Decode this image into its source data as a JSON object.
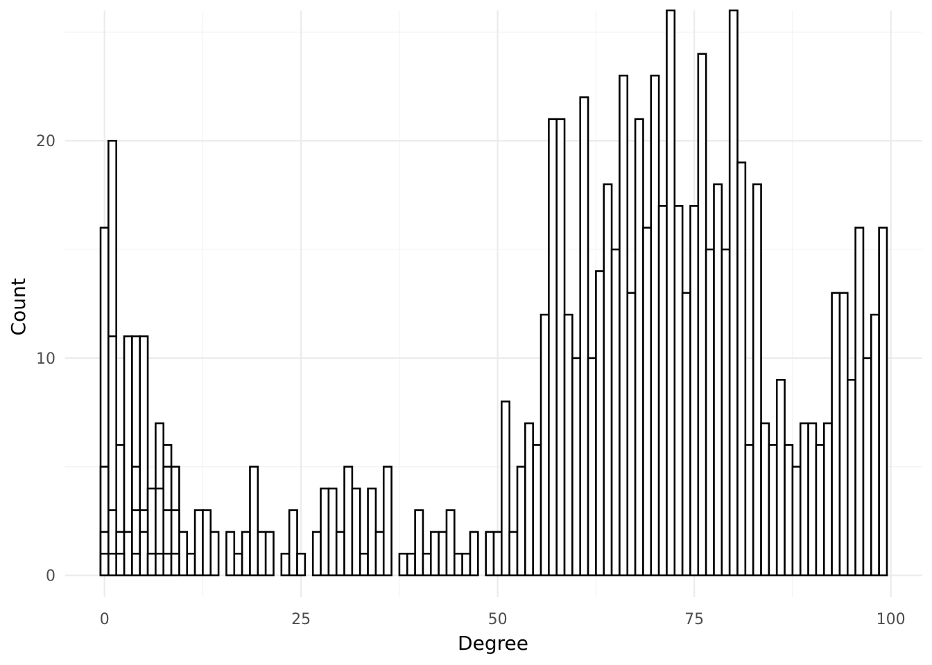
{
  "chart_data": {
    "type": "bar",
    "title": "",
    "xlabel": "Degree",
    "ylabel": "Count",
    "xlim": [
      -5,
      104
    ],
    "ylim": [
      -1,
      26
    ],
    "x_ticks": [
      0,
      25,
      50,
      75,
      100
    ],
    "y_ticks": [
      0,
      10,
      20
    ],
    "grid": true,
    "layers": [
      {
        "values": [
          16,
          20,
          6,
          11,
          11,
          11,
          4,
          7,
          6,
          5,
          2,
          1,
          3,
          3,
          2,
          0,
          2,
          1,
          2,
          5,
          2,
          2,
          0,
          1,
          3,
          1,
          0,
          2,
          4,
          4,
          2,
          5,
          4,
          1,
          4,
          2,
          5,
          0,
          1,
          1,
          3,
          1,
          2,
          2,
          3,
          1,
          1,
          2,
          0,
          2,
          2,
          8,
          2,
          5,
          7,
          6,
          12,
          21,
          21,
          12,
          10,
          22,
          10,
          14,
          18,
          15,
          23,
          13,
          21,
          16,
          23,
          17,
          26,
          17,
          13,
          17,
          24,
          15,
          18,
          15,
          26,
          19,
          6,
          18,
          7,
          6,
          9,
          6,
          5,
          7,
          7,
          6,
          7,
          13,
          13,
          9,
          16,
          10,
          12,
          16
        ]
      },
      {
        "values": [
          5,
          11,
          0,
          0,
          5,
          3,
          1,
          4,
          5,
          3,
          0,
          0,
          0,
          0,
          0,
          0,
          0,
          0,
          0,
          0,
          0,
          0,
          0,
          0,
          0,
          0,
          0,
          0,
          0,
          0,
          0,
          0,
          0,
          0,
          0,
          0,
          0,
          0,
          0,
          0,
          0,
          0,
          0,
          0,
          0,
          0,
          0,
          0,
          0,
          0,
          0,
          0,
          0,
          0,
          0,
          0,
          0,
          0,
          0,
          0,
          0,
          0,
          0,
          0,
          0,
          0,
          0,
          0,
          0,
          0,
          0,
          0,
          0,
          0,
          0,
          0,
          0,
          0,
          0,
          0,
          0,
          0,
          0,
          0,
          0,
          0,
          0,
          0,
          0,
          0,
          0,
          0,
          0,
          0,
          0,
          0,
          0,
          0,
          0,
          0
        ]
      },
      {
        "values": [
          2,
          3,
          2,
          2,
          3,
          2,
          1,
          1,
          3,
          1,
          0,
          0,
          0,
          0,
          0,
          0,
          0,
          0,
          0,
          0,
          0,
          0,
          0,
          0,
          0,
          0,
          0,
          0,
          0,
          0,
          0,
          0,
          0,
          0,
          0,
          0,
          0,
          0,
          0,
          0,
          0,
          0,
          0,
          0,
          0,
          0,
          0,
          0,
          0,
          0,
          0,
          0,
          0,
          0,
          0,
          0,
          0,
          0,
          0,
          0,
          0,
          0,
          0,
          0,
          0,
          0,
          0,
          0,
          0,
          0,
          0,
          0,
          0,
          0,
          0,
          0,
          0,
          0,
          0,
          0,
          0,
          0,
          0,
          0,
          0,
          0,
          0,
          0,
          0,
          0,
          0,
          0,
          0,
          0,
          0,
          0,
          0,
          0,
          0,
          0
        ]
      },
      {
        "values": [
          1,
          1,
          1,
          0,
          1,
          0,
          0,
          0,
          1,
          1,
          0,
          0,
          0,
          0,
          0,
          0,
          0,
          0,
          0,
          0,
          0,
          0,
          0,
          0,
          0,
          0,
          0,
          0,
          0,
          0,
          0,
          0,
          0,
          0,
          0,
          0,
          0,
          0,
          0,
          0,
          0,
          0,
          0,
          0,
          0,
          0,
          0,
          0,
          0,
          0,
          0,
          0,
          0,
          0,
          0,
          0,
          0,
          0,
          0,
          0,
          0,
          0,
          0,
          0,
          0,
          0,
          0,
          0,
          0,
          0,
          0,
          0,
          0,
          0,
          0,
          0,
          0,
          0,
          0,
          0,
          0,
          0,
          0,
          0,
          0,
          0,
          0,
          0,
          0,
          0,
          0,
          0,
          0,
          0,
          0,
          0,
          0,
          0,
          0,
          0
        ]
      }
    ]
  }
}
